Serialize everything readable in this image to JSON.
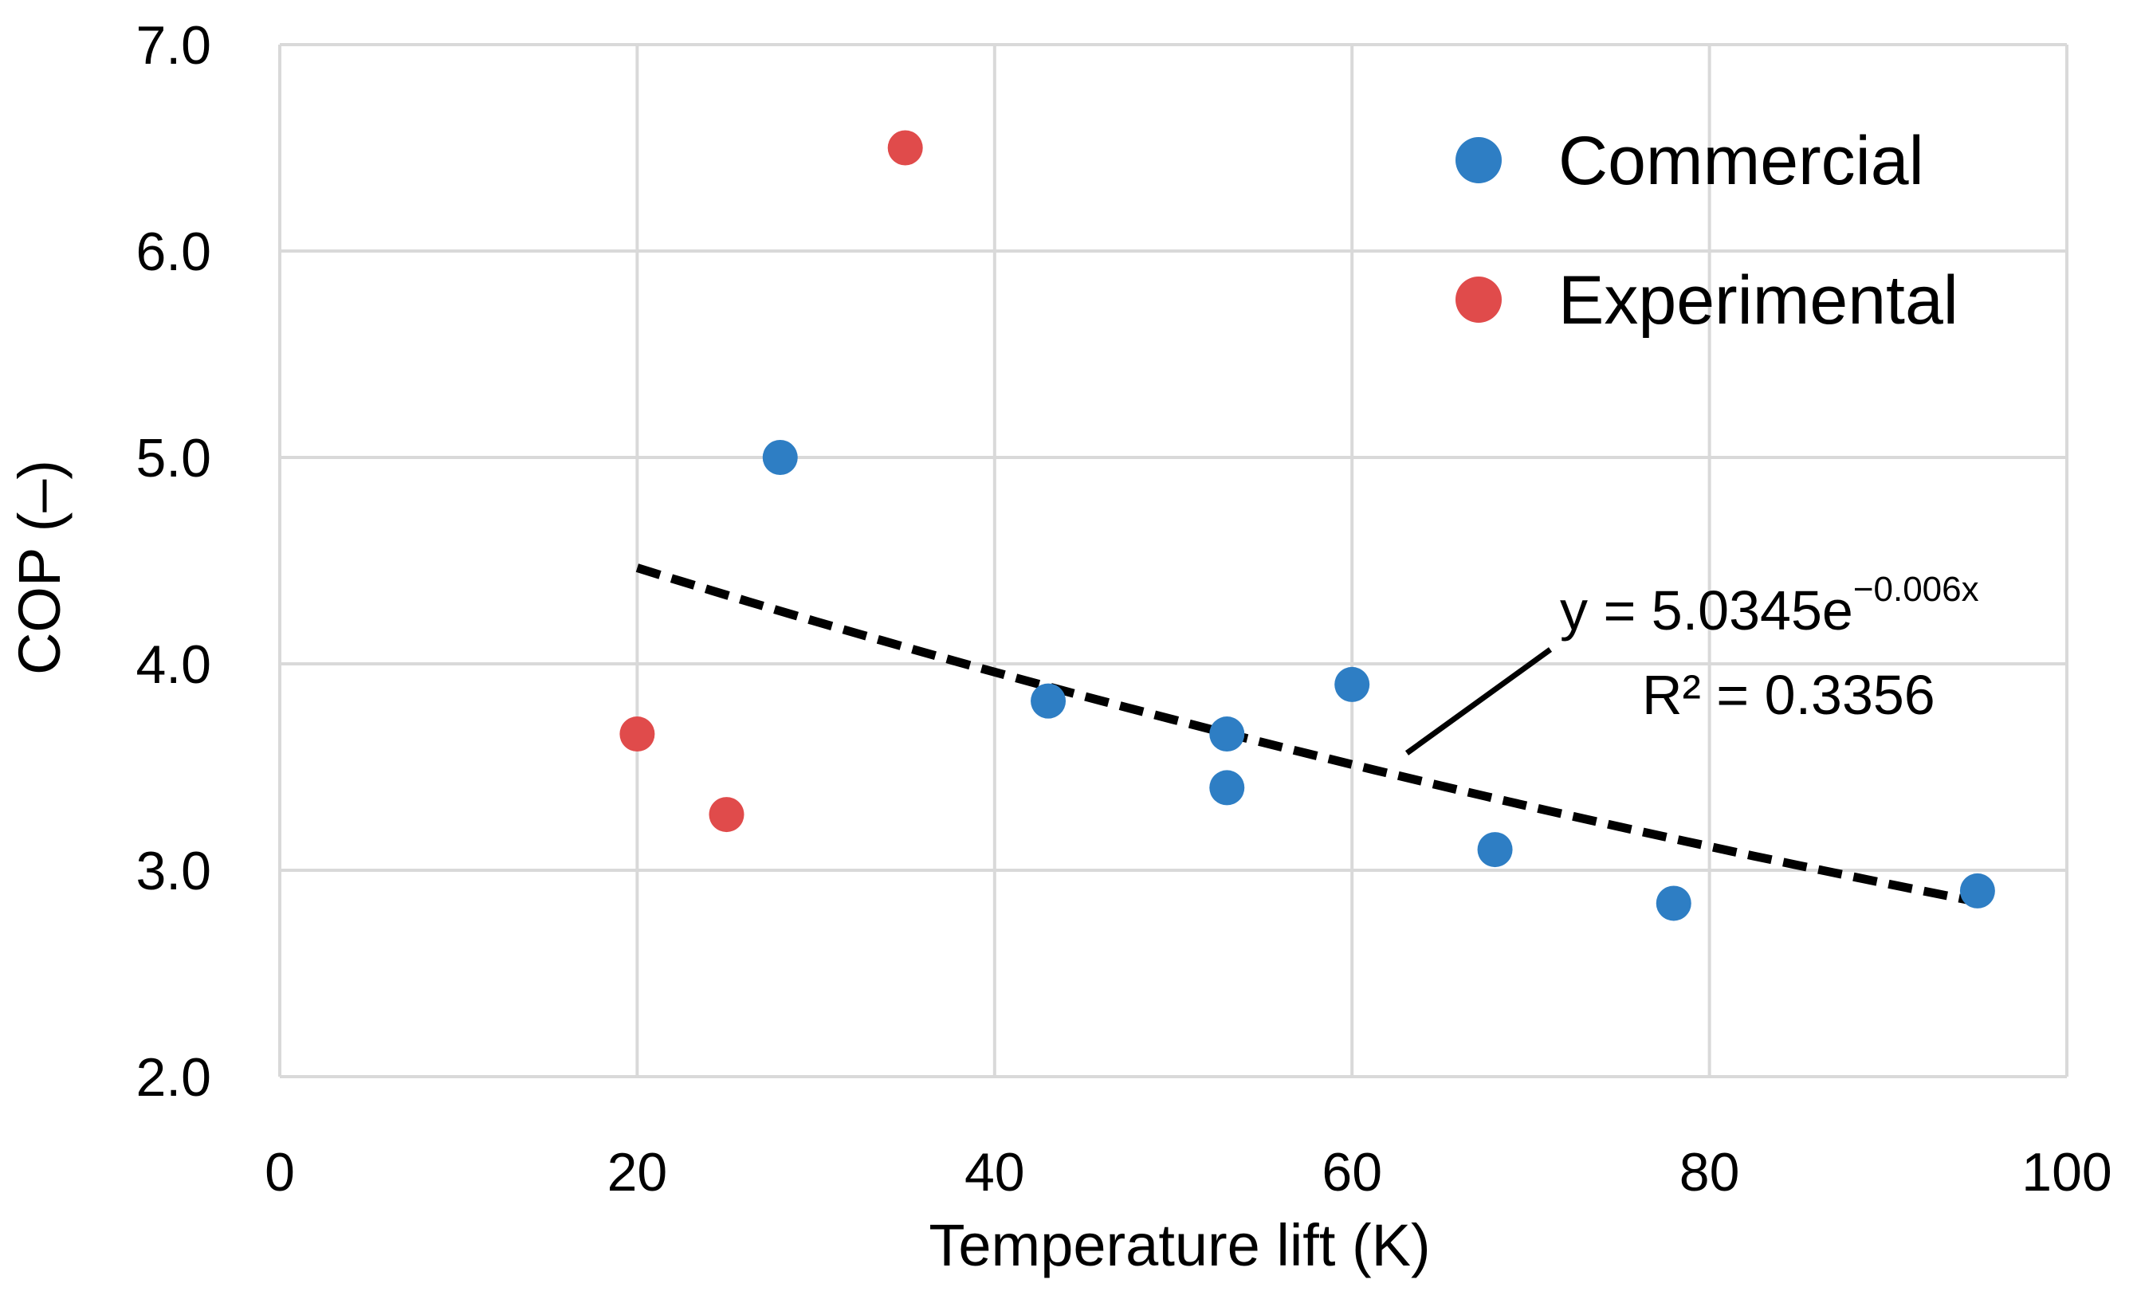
{
  "chart_data": {
    "type": "scatter",
    "title": "",
    "xlabel": "Temperature lift (K)",
    "ylabel": "COP (–)",
    "xlim": [
      0,
      100
    ],
    "ylim": [
      2.0,
      7.0
    ],
    "x_ticks": [
      0,
      20,
      40,
      60,
      80,
      100
    ],
    "y_ticks": [
      2.0,
      3.0,
      4.0,
      5.0,
      6.0,
      7.0
    ],
    "x_tick_labels": [
      "0",
      "20",
      "40",
      "60",
      "80",
      "100"
    ],
    "y_tick_labels": [
      "2.0",
      "3.0",
      "4.0",
      "5.0",
      "6.0",
      "7.0"
    ],
    "grid": true,
    "legend_position": "top-right",
    "series": [
      {
        "name": "Commercial",
        "color": "#2E7EC4",
        "points": [
          {
            "x": 28,
            "y": 5.0
          },
          {
            "x": 43,
            "y": 3.82
          },
          {
            "x": 53,
            "y": 3.66
          },
          {
            "x": 53,
            "y": 3.4
          },
          {
            "x": 60,
            "y": 3.9
          },
          {
            "x": 68,
            "y": 3.1
          },
          {
            "x": 78,
            "y": 2.84
          },
          {
            "x": 95,
            "y": 2.9
          }
        ]
      },
      {
        "name": "Experimental",
        "color": "#E04B4B",
        "points": [
          {
            "x": 20,
            "y": 3.66
          },
          {
            "x": 25,
            "y": 3.27
          },
          {
            "x": 35,
            "y": 6.5
          }
        ]
      }
    ],
    "trendline": {
      "type": "exponential",
      "a": 5.0345,
      "b": -0.006,
      "x_start": 20,
      "x_end": 95,
      "color": "#000000",
      "style": "dashed"
    },
    "annotation": {
      "equation_prefix": "y = 5.0345e",
      "equation_exponent": "−0.006x",
      "r_squared": "R² = 0.3356"
    }
  }
}
